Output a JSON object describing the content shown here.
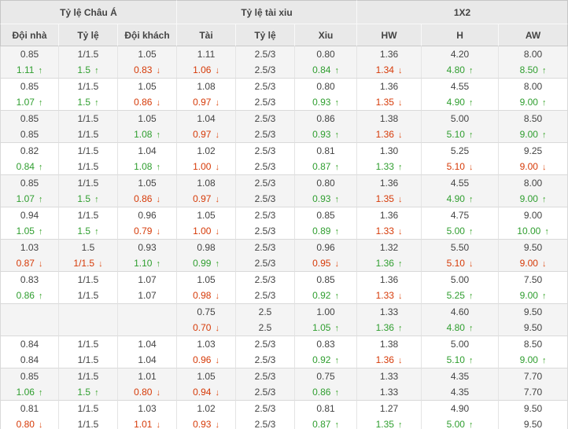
{
  "table": {
    "groups": [
      {
        "label": "Tỷ lệ Châu Á",
        "span": 3
      },
      {
        "label": "Tỷ lệ tài xiu",
        "span": 3
      },
      {
        "label": "1X2",
        "span": 3
      }
    ],
    "columns": [
      "Đội nhà",
      "Tỷ lệ",
      "Đội khách",
      "Tài",
      "Tỷ lệ",
      "Xiu",
      "HW",
      "H",
      "AW"
    ],
    "icons": {
      "up": "↑",
      "down": "↓"
    },
    "colors": {
      "up_text": "#2f9e2f",
      "down_text": "#d63a08",
      "normal_text": "#444444",
      "header_bg": "#e9e9e9",
      "shaded_row_bg": "#f4f4f4"
    },
    "rows": [
      {
        "lines": [
          {
            "cells": [
              {
                "v": "0.85"
              },
              {
                "v": "1/1.5"
              },
              {
                "v": "1.05"
              },
              {
                "v": "1.11"
              },
              {
                "v": "2.5/3"
              },
              {
                "v": "0.80"
              },
              {
                "v": "1.36"
              },
              {
                "v": "4.20"
              },
              {
                "v": "8.00"
              }
            ]
          },
          {
            "cells": [
              {
                "v": "1.11",
                "d": "up"
              },
              {
                "v": "1.5",
                "d": "up"
              },
              {
                "v": "0.83",
                "d": "down"
              },
              {
                "v": "1.06",
                "d": "down"
              },
              {
                "v": "2.5/3"
              },
              {
                "v": "0.84",
                "d": "up"
              },
              {
                "v": "1.34",
                "d": "down"
              },
              {
                "v": "4.80",
                "d": "up"
              },
              {
                "v": "8.50",
                "d": "up"
              }
            ]
          }
        ]
      },
      {
        "lines": [
          {
            "cells": [
              {
                "v": "0.85"
              },
              {
                "v": "1/1.5"
              },
              {
                "v": "1.05"
              },
              {
                "v": "1.08"
              },
              {
                "v": "2.5/3"
              },
              {
                "v": "0.80"
              },
              {
                "v": "1.36"
              },
              {
                "v": "4.55"
              },
              {
                "v": "8.00"
              }
            ]
          },
          {
            "cells": [
              {
                "v": "1.07",
                "d": "up"
              },
              {
                "v": "1.5",
                "d": "up"
              },
              {
                "v": "0.86",
                "d": "down"
              },
              {
                "v": "0.97",
                "d": "down"
              },
              {
                "v": "2.5/3"
              },
              {
                "v": "0.93",
                "d": "up"
              },
              {
                "v": "1.35",
                "d": "down"
              },
              {
                "v": "4.90",
                "d": "up"
              },
              {
                "v": "9.00",
                "d": "up"
              }
            ]
          }
        ]
      },
      {
        "lines": [
          {
            "cells": [
              {
                "v": "0.85"
              },
              {
                "v": "1/1.5"
              },
              {
                "v": "1.05"
              },
              {
                "v": "1.04"
              },
              {
                "v": "2.5/3"
              },
              {
                "v": "0.86"
              },
              {
                "v": "1.38"
              },
              {
                "v": "5.00"
              },
              {
                "v": "8.50"
              }
            ]
          },
          {
            "cells": [
              {
                "v": "0.85"
              },
              {
                "v": "1/1.5"
              },
              {
                "v": "1.08",
                "d": "up"
              },
              {
                "v": "0.97",
                "d": "down"
              },
              {
                "v": "2.5/3"
              },
              {
                "v": "0.93",
                "d": "up"
              },
              {
                "v": "1.36",
                "d": "down"
              },
              {
                "v": "5.10",
                "d": "up"
              },
              {
                "v": "9.00",
                "d": "up"
              }
            ]
          }
        ]
      },
      {
        "lines": [
          {
            "cells": [
              {
                "v": "0.82"
              },
              {
                "v": "1/1.5"
              },
              {
                "v": "1.04"
              },
              {
                "v": "1.02"
              },
              {
                "v": "2.5/3"
              },
              {
                "v": "0.81"
              },
              {
                "v": "1.30"
              },
              {
                "v": "5.25"
              },
              {
                "v": "9.25"
              }
            ]
          },
          {
            "cells": [
              {
                "v": "0.84",
                "d": "up"
              },
              {
                "v": "1/1.5"
              },
              {
                "v": "1.08",
                "d": "up"
              },
              {
                "v": "1.00",
                "d": "down"
              },
              {
                "v": "2.5/3"
              },
              {
                "v": "0.87",
                "d": "up"
              },
              {
                "v": "1.33",
                "d": "up"
              },
              {
                "v": "5.10",
                "d": "down"
              },
              {
                "v": "9.00",
                "d": "down"
              }
            ]
          }
        ]
      },
      {
        "lines": [
          {
            "cells": [
              {
                "v": "0.85"
              },
              {
                "v": "1/1.5"
              },
              {
                "v": "1.05"
              },
              {
                "v": "1.08"
              },
              {
                "v": "2.5/3"
              },
              {
                "v": "0.80"
              },
              {
                "v": "1.36"
              },
              {
                "v": "4.55"
              },
              {
                "v": "8.00"
              }
            ]
          },
          {
            "cells": [
              {
                "v": "1.07",
                "d": "up"
              },
              {
                "v": "1.5",
                "d": "up"
              },
              {
                "v": "0.86",
                "d": "down"
              },
              {
                "v": "0.97",
                "d": "down"
              },
              {
                "v": "2.5/3"
              },
              {
                "v": "0.93",
                "d": "up"
              },
              {
                "v": "1.35",
                "d": "down"
              },
              {
                "v": "4.90",
                "d": "up"
              },
              {
                "v": "9.00",
                "d": "up"
              }
            ]
          }
        ]
      },
      {
        "lines": [
          {
            "cells": [
              {
                "v": "0.94"
              },
              {
                "v": "1/1.5"
              },
              {
                "v": "0.96"
              },
              {
                "v": "1.05"
              },
              {
                "v": "2.5/3"
              },
              {
                "v": "0.85"
              },
              {
                "v": "1.36"
              },
              {
                "v": "4.75"
              },
              {
                "v": "9.00"
              }
            ]
          },
          {
            "cells": [
              {
                "v": "1.05",
                "d": "up"
              },
              {
                "v": "1.5",
                "d": "up"
              },
              {
                "v": "0.79",
                "d": "down"
              },
              {
                "v": "1.00",
                "d": "down"
              },
              {
                "v": "2.5/3"
              },
              {
                "v": "0.89",
                "d": "up"
              },
              {
                "v": "1.33",
                "d": "down"
              },
              {
                "v": "5.00",
                "d": "up"
              },
              {
                "v": "10.00",
                "d": "up"
              }
            ]
          }
        ]
      },
      {
        "lines": [
          {
            "cells": [
              {
                "v": "1.03"
              },
              {
                "v": "1.5"
              },
              {
                "v": "0.93"
              },
              {
                "v": "0.98"
              },
              {
                "v": "2.5/3"
              },
              {
                "v": "0.96"
              },
              {
                "v": "1.32"
              },
              {
                "v": "5.50"
              },
              {
                "v": "9.50"
              }
            ]
          },
          {
            "cells": [
              {
                "v": "0.87",
                "d": "down"
              },
              {
                "v": "1/1.5",
                "d": "down"
              },
              {
                "v": "1.10",
                "d": "up"
              },
              {
                "v": "0.99",
                "d": "up"
              },
              {
                "v": "2.5/3"
              },
              {
                "v": "0.95",
                "d": "down"
              },
              {
                "v": "1.36",
                "d": "up"
              },
              {
                "v": "5.10",
                "d": "down"
              },
              {
                "v": "9.00",
                "d": "down"
              }
            ]
          }
        ]
      },
      {
        "lines": [
          {
            "cells": [
              {
                "v": "0.83"
              },
              {
                "v": "1/1.5"
              },
              {
                "v": "1.07"
              },
              {
                "v": "1.05"
              },
              {
                "v": "2.5/3"
              },
              {
                "v": "0.85"
              },
              {
                "v": "1.36"
              },
              {
                "v": "5.00"
              },
              {
                "v": "7.50"
              }
            ]
          },
          {
            "cells": [
              {
                "v": "0.86",
                "d": "up"
              },
              {
                "v": "1/1.5"
              },
              {
                "v": "1.07"
              },
              {
                "v": "0.98",
                "d": "down"
              },
              {
                "v": "2.5/3"
              },
              {
                "v": "0.92",
                "d": "up"
              },
              {
                "v": "1.33",
                "d": "down"
              },
              {
                "v": "5.25",
                "d": "up"
              },
              {
                "v": "9.00",
                "d": "up"
              }
            ]
          }
        ]
      },
      {
        "lines": [
          {
            "cells": [
              {
                "v": ""
              },
              {
                "v": ""
              },
              {
                "v": ""
              },
              {
                "v": "0.75"
              },
              {
                "v": "2.5"
              },
              {
                "v": "1.00"
              },
              {
                "v": "1.33"
              },
              {
                "v": "4.60"
              },
              {
                "v": "9.50"
              }
            ]
          },
          {
            "cells": [
              {
                "v": ""
              },
              {
                "v": ""
              },
              {
                "v": ""
              },
              {
                "v": "0.70",
                "d": "down"
              },
              {
                "v": "2.5"
              },
              {
                "v": "1.05",
                "d": "up"
              },
              {
                "v": "1.36",
                "d": "up"
              },
              {
                "v": "4.80",
                "d": "up"
              },
              {
                "v": "9.50"
              }
            ]
          }
        ]
      },
      {
        "lines": [
          {
            "cells": [
              {
                "v": "0.84"
              },
              {
                "v": "1/1.5"
              },
              {
                "v": "1.04"
              },
              {
                "v": "1.03"
              },
              {
                "v": "2.5/3"
              },
              {
                "v": "0.83"
              },
              {
                "v": "1.38"
              },
              {
                "v": "5.00"
              },
              {
                "v": "8.50"
              }
            ]
          },
          {
            "cells": [
              {
                "v": "0.84"
              },
              {
                "v": "1/1.5"
              },
              {
                "v": "1.04"
              },
              {
                "v": "0.96",
                "d": "down"
              },
              {
                "v": "2.5/3"
              },
              {
                "v": "0.92",
                "d": "up"
              },
              {
                "v": "1.36",
                "d": "down"
              },
              {
                "v": "5.10",
                "d": "up"
              },
              {
                "v": "9.00",
                "d": "up"
              }
            ]
          }
        ]
      },
      {
        "lines": [
          {
            "cells": [
              {
                "v": "0.85"
              },
              {
                "v": "1/1.5"
              },
              {
                "v": "1.01"
              },
              {
                "v": "1.05"
              },
              {
                "v": "2.5/3"
              },
              {
                "v": "0.75"
              },
              {
                "v": "1.33"
              },
              {
                "v": "4.35"
              },
              {
                "v": "7.70"
              }
            ]
          },
          {
            "cells": [
              {
                "v": "1.06",
                "d": "up"
              },
              {
                "v": "1.5",
                "d": "up"
              },
              {
                "v": "0.80",
                "d": "down"
              },
              {
                "v": "0.94",
                "d": "down"
              },
              {
                "v": "2.5/3"
              },
              {
                "v": "0.86",
                "d": "up"
              },
              {
                "v": "1.33"
              },
              {
                "v": "4.35"
              },
              {
                "v": "7.70"
              }
            ]
          }
        ]
      },
      {
        "lines": [
          {
            "cells": [
              {
                "v": "0.81"
              },
              {
                "v": "1/1.5"
              },
              {
                "v": "1.03"
              },
              {
                "v": "1.02"
              },
              {
                "v": "2.5/3"
              },
              {
                "v": "0.81"
              },
              {
                "v": "1.27"
              },
              {
                "v": "4.90"
              },
              {
                "v": "9.50"
              }
            ]
          },
          {
            "cells": [
              {
                "v": "0.80",
                "d": "down"
              },
              {
                "v": "1/1.5"
              },
              {
                "v": "1.01",
                "d": "down"
              },
              {
                "v": "0.93",
                "d": "down"
              },
              {
                "v": "2.5/3"
              },
              {
                "v": "0.87",
                "d": "up"
              },
              {
                "v": "1.35",
                "d": "up"
              },
              {
                "v": "5.00",
                "d": "up"
              },
              {
                "v": "9.50"
              }
            ]
          }
        ]
      }
    ]
  }
}
